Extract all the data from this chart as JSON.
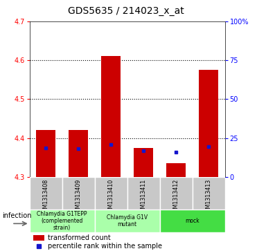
{
  "title": "GDS5635 / 214023_x_at",
  "samples": [
    "GSM1313408",
    "GSM1313409",
    "GSM1313410",
    "GSM1313411",
    "GSM1313412",
    "GSM1313413"
  ],
  "red_values": [
    4.42,
    4.42,
    4.61,
    4.375,
    4.335,
    4.575
  ],
  "blue_values": [
    4.375,
    4.373,
    4.383,
    4.368,
    4.364,
    4.378
  ],
  "y_min": 4.3,
  "y_max": 4.7,
  "y_ticks": [
    4.3,
    4.4,
    4.5,
    4.6,
    4.7
  ],
  "y2_ticks_pct": [
    0,
    25,
    50,
    75,
    100
  ],
  "y2_tick_labels": [
    "0",
    "25",
    "50",
    "75",
    "100%"
  ],
  "bar_width": 0.6,
  "red_color": "#cc0000",
  "blue_color": "#1515cc",
  "bar_base": 4.3,
  "group_info": [
    {
      "label": "Chlamydia G1TEPP\n(complemented\nstrain)",
      "indices": [
        0,
        1
      ],
      "color": "#aaffaa"
    },
    {
      "label": "Chlamydia G1V\nmutant",
      "indices": [
        2,
        3
      ],
      "color": "#aaffaa"
    },
    {
      "label": "mock",
      "indices": [
        4,
        5
      ],
      "color": "#44cc44"
    }
  ],
  "infection_label": "infection",
  "legend_red_label": "transformed count",
  "legend_blue_label": "percentile rank within the sample",
  "bg_color": "#c8c8c8",
  "tick_label_size": 7,
  "title_fontsize": 10
}
